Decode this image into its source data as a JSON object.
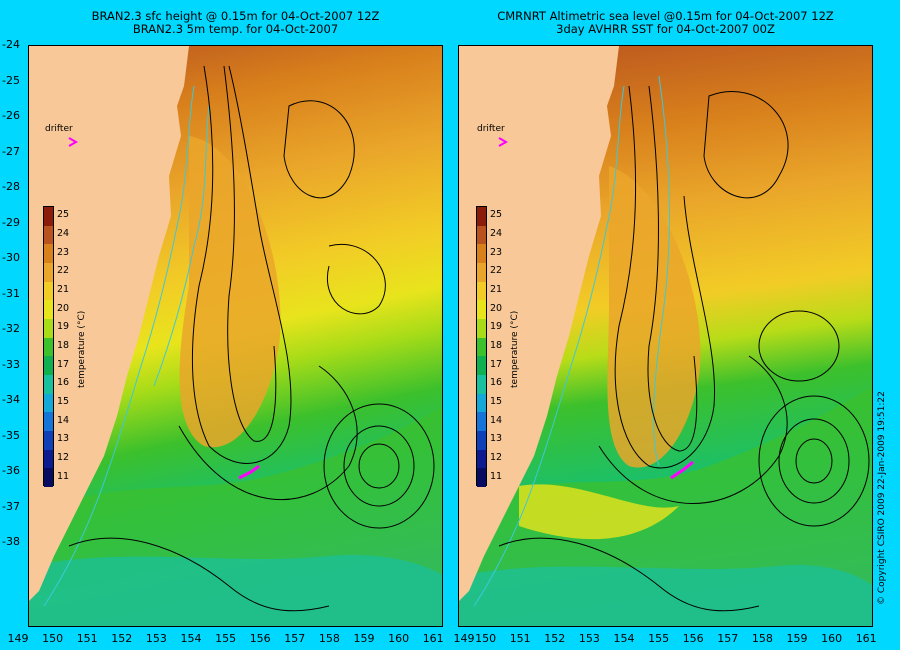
{
  "titles": {
    "left_line1": "BRAN2.3 sfc height @ 0.15m for 04-Oct-2007 12Z",
    "left_line2": "BRAN2.3 5m temp. for 04-Oct-2007",
    "right_line1": "CMRNRT Altimetric sea level  @0.15m  for 04-Oct-2007 12Z",
    "right_line2": "3day AVHRR SST for 04-Oct-2007 00Z"
  },
  "lat_ticks": [
    "-24",
    "-25",
    "-26",
    "-27",
    "-28",
    "-29",
    "-30",
    "-31",
    "-32",
    "-33",
    "-34",
    "-35",
    "-36",
    "-37",
    "-38"
  ],
  "lon_ticks": [
    "149",
    "150",
    "151",
    "152",
    "153",
    "154",
    "155",
    "156",
    "157",
    "158",
    "159",
    "160",
    "161"
  ],
  "lon_right_first": "149",
  "colorbar": {
    "ticks": [
      "25",
      "24",
      "23",
      "22",
      "21",
      "20",
      "19",
      "18",
      "17",
      "16",
      "15",
      "14",
      "13",
      "12",
      "11"
    ],
    "label": "temperature (°C)",
    "colors": [
      "#8b1c0c",
      "#b8531f",
      "#d8801c",
      "#eaa62a",
      "#f2cc26",
      "#e8e41c",
      "#a8dc18",
      "#3cc02c",
      "#10b050",
      "#18c0a0",
      "#14a8d8",
      "#1474d8",
      "#1040b8",
      "#0c1c90",
      "#080c60"
    ]
  },
  "drifter": {
    "label": "drifter"
  },
  "copyright": "© Copyright CSIRO 2009   22-Jan-2009 19:51:22",
  "colors": {
    "background": "#00d8ff",
    "land": "#f8c898",
    "contour": "#000000",
    "isobath": "#3ec8d8",
    "drifter": "#ff00ff"
  }
}
